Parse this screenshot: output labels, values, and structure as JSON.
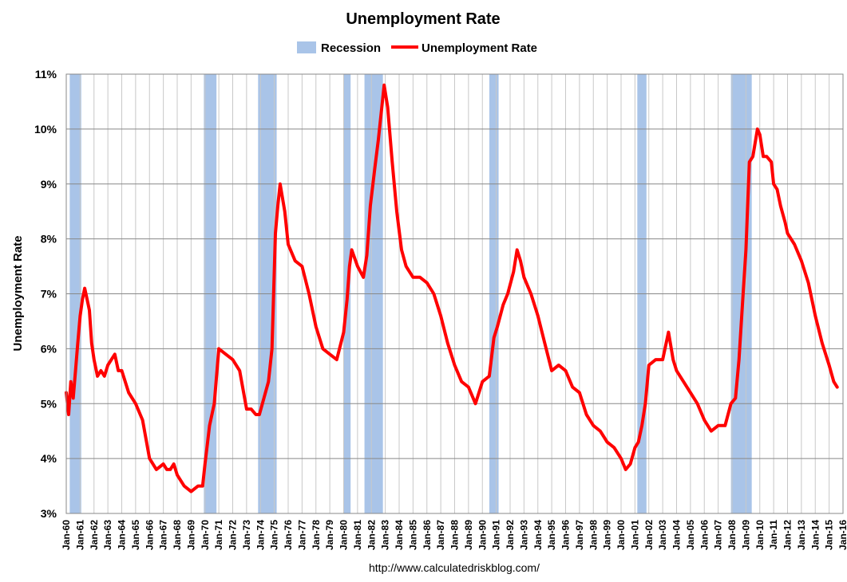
{
  "chart_data": {
    "type": "line",
    "title": "Unemployment Rate",
    "ylabel": "Unemployment Rate",
    "source": "http://www.calculatedriskblog.com/",
    "ylim": [
      3,
      11
    ],
    "yticks": [
      "3%",
      "4%",
      "5%",
      "6%",
      "7%",
      "8%",
      "9%",
      "10%",
      "11%"
    ],
    "xlim": [
      1960,
      2016
    ],
    "xticks": [
      "Jan-60",
      "Jan-61",
      "Jan-62",
      "Jan-63",
      "Jan-64",
      "Jan-65",
      "Jan-66",
      "Jan-67",
      "Jan-68",
      "Jan-69",
      "Jan-70",
      "Jan-71",
      "Jan-72",
      "Jan-73",
      "Jan-74",
      "Jan-75",
      "Jan-76",
      "Jan-77",
      "Jan-78",
      "Jan-79",
      "Jan-80",
      "Jan-81",
      "Jan-82",
      "Jan-83",
      "Jan-84",
      "Jan-85",
      "Jan-86",
      "Jan-87",
      "Jan-88",
      "Jan-89",
      "Jan-90",
      "Jan-91",
      "Jan-92",
      "Jan-93",
      "Jan-94",
      "Jan-95",
      "Jan-96",
      "Jan-97",
      "Jan-98",
      "Jan-99",
      "Jan-00",
      "Jan-01",
      "Jan-02",
      "Jan-03",
      "Jan-04",
      "Jan-05",
      "Jan-06",
      "Jan-07",
      "Jan-08",
      "Jan-09",
      "Jan-10",
      "Jan-11",
      "Jan-12",
      "Jan-13",
      "Jan-14",
      "Jan-15",
      "Jan-16"
    ],
    "grid": true,
    "legend_position": "top-center",
    "legend": [
      {
        "name": "Recession",
        "type": "area",
        "color": "#A9C4E8"
      },
      {
        "name": "Unemployment Rate",
        "type": "line",
        "color": "#FF0000"
      }
    ],
    "recessions": [
      [
        1960.25,
        1961.08
      ],
      [
        1969.92,
        1970.83
      ],
      [
        1973.83,
        1975.17
      ],
      [
        1980.0,
        1980.5
      ],
      [
        1981.5,
        1982.83
      ],
      [
        1990.5,
        1991.17
      ],
      [
        2001.17,
        2001.83
      ],
      [
        2007.92,
        2009.42
      ]
    ],
    "series": [
      {
        "name": "Unemployment Rate",
        "color": "#FF0000",
        "x": [
          1960.0,
          1960.17,
          1960.33,
          1960.5,
          1960.67,
          1960.83,
          1961.0,
          1961.17,
          1961.33,
          1961.5,
          1961.67,
          1961.83,
          1962.0,
          1962.25,
          1962.5,
          1962.75,
          1963.0,
          1963.25,
          1963.5,
          1963.75,
          1964.0,
          1964.5,
          1965.0,
          1965.5,
          1966.0,
          1966.5,
          1967.0,
          1967.25,
          1967.5,
          1967.75,
          1968.0,
          1968.5,
          1969.0,
          1969.5,
          1969.83,
          1970.0,
          1970.33,
          1970.67,
          1971.0,
          1971.5,
          1972.0,
          1972.5,
          1973.0,
          1973.33,
          1973.67,
          1973.92,
          1974.25,
          1974.58,
          1974.83,
          1975.08,
          1975.25,
          1975.42,
          1975.75,
          1976.0,
          1976.5,
          1977.0,
          1977.5,
          1978.0,
          1978.5,
          1979.0,
          1979.5,
          1980.0,
          1980.25,
          1980.42,
          1980.58,
          1981.0,
          1981.42,
          1981.67,
          1981.92,
          1982.25,
          1982.5,
          1982.75,
          1982.92,
          1983.17,
          1983.5,
          1983.83,
          1984.17,
          1984.5,
          1985.0,
          1985.5,
          1986.0,
          1986.5,
          1987.0,
          1987.5,
          1988.0,
          1988.5,
          1989.0,
          1989.5,
          1990.0,
          1990.5,
          1990.83,
          1991.08,
          1991.5,
          1991.83,
          1992.25,
          1992.5,
          1992.75,
          1993.0,
          1993.5,
          1994.0,
          1994.5,
          1995.0,
          1995.5,
          1996.0,
          1996.5,
          1997.0,
          1997.5,
          1998.0,
          1998.5,
          1999.0,
          1999.5,
          2000.0,
          2000.33,
          2000.67,
          2001.0,
          2001.25,
          2001.5,
          2001.75,
          2002.0,
          2002.5,
          2003.0,
          2003.42,
          2003.75,
          2004.0,
          2004.5,
          2005.0,
          2005.5,
          2006.0,
          2006.5,
          2007.0,
          2007.5,
          2007.92,
          2008.25,
          2008.5,
          2008.75,
          2009.0,
          2009.25,
          2009.5,
          2009.83,
          2010.0,
          2010.25,
          2010.5,
          2010.83,
          2011.0,
          2011.25,
          2011.5,
          2011.83,
          2012.0,
          2012.5,
          2013.0,
          2013.5,
          2014.0,
          2014.5,
          2015.0,
          2015.33,
          2015.58
        ],
        "y": [
          5.2,
          4.8,
          5.4,
          5.1,
          5.6,
          6.1,
          6.6,
          6.9,
          7.1,
          6.9,
          6.7,
          6.1,
          5.8,
          5.5,
          5.6,
          5.5,
          5.7,
          5.8,
          5.9,
          5.6,
          5.6,
          5.2,
          5.0,
          4.7,
          4.0,
          3.8,
          3.9,
          3.8,
          3.8,
          3.9,
          3.7,
          3.5,
          3.4,
          3.5,
          3.5,
          3.9,
          4.6,
          5.0,
          6.0,
          5.9,
          5.8,
          5.6,
          4.9,
          4.9,
          4.8,
          4.8,
          5.1,
          5.4,
          6.0,
          8.1,
          8.6,
          9.0,
          8.5,
          7.9,
          7.6,
          7.5,
          7.0,
          6.4,
          6.0,
          5.9,
          5.8,
          6.3,
          6.9,
          7.5,
          7.8,
          7.5,
          7.3,
          7.7,
          8.6,
          9.3,
          9.8,
          10.4,
          10.8,
          10.4,
          9.4,
          8.5,
          7.8,
          7.5,
          7.3,
          7.3,
          7.2,
          7.0,
          6.6,
          6.1,
          5.7,
          5.4,
          5.3,
          5.0,
          5.4,
          5.5,
          6.2,
          6.4,
          6.8,
          7.0,
          7.4,
          7.8,
          7.6,
          7.3,
          7.0,
          6.6,
          6.1,
          5.6,
          5.7,
          5.6,
          5.3,
          5.2,
          4.8,
          4.6,
          4.5,
          4.3,
          4.2,
          4.0,
          3.8,
          3.9,
          4.2,
          4.3,
          4.6,
          5.0,
          5.7,
          5.8,
          5.8,
          6.3,
          5.8,
          5.6,
          5.4,
          5.2,
          5.0,
          4.7,
          4.5,
          4.6,
          4.6,
          5.0,
          5.1,
          5.8,
          6.8,
          7.8,
          9.4,
          9.5,
          10.0,
          9.9,
          9.5,
          9.5,
          9.4,
          9.0,
          8.9,
          8.6,
          8.3,
          8.1,
          7.9,
          7.6,
          7.2,
          6.6,
          6.1,
          5.7,
          5.4,
          5.3
        ]
      }
    ]
  }
}
